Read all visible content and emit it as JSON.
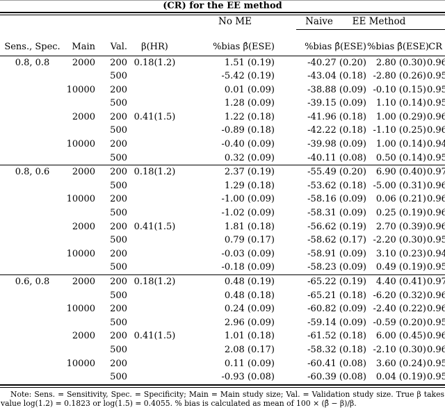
{
  "caption": "(CR) for the EE method",
  "table": {
    "groups": {
      "no_me": "No ME",
      "naive": "Naive",
      "ee_method": "EE Method"
    },
    "columns": [
      "Sens., Spec.",
      "Main",
      "Val.",
      "β(HR)",
      "%bias β̂(ESE)",
      "%bias β̂(ESE)",
      "%bias β̂(ESE)",
      "CR"
    ],
    "sections": [
      {
        "label": "0.8, 0.8",
        "rows": [
          [
            "0.8, 0.8",
            "2000",
            "200",
            "0.18(1.2)",
            "1.51 (0.19)",
            "-40.27 (0.20)",
            "2.80 (0.30)",
            "0.96"
          ],
          [
            "",
            "",
            "500",
            "",
            "-5.42 (0.19)",
            "-43.04 (0.18)",
            "-2.80 (0.26)",
            "0.95"
          ],
          [
            "",
            "10000",
            "200",
            "",
            "0.01 (0.09)",
            "-38.88 (0.09)",
            "-0.10 (0.15)",
            "0.95"
          ],
          [
            "",
            "",
            "500",
            "",
            "1.28 (0.09)",
            "-39.15 (0.09)",
            "1.10 (0.14)",
            "0.95"
          ],
          [
            "",
            "2000",
            "200",
            "0.41(1.5)",
            "1.22 (0.18)",
            "-41.96 (0.18)",
            "1.00 (0.29)",
            "0.96"
          ],
          [
            "",
            "",
            "500",
            "",
            "-0.89 (0.18)",
            "-42.22 (0.18)",
            "-1.10 (0.25)",
            "0.96"
          ],
          [
            "",
            "10000",
            "200",
            "",
            "-0.40 (0.09)",
            "-39.98 (0.09)",
            "1.00 (0.14)",
            "0.94"
          ],
          [
            "",
            "",
            "500",
            "",
            "0.32 (0.09)",
            "-40.11 (0.08)",
            "0.50 (0.14)",
            "0.95"
          ]
        ]
      },
      {
        "label": "0.8, 0.6",
        "rows": [
          [
            "0.8, 0.6",
            "2000",
            "200",
            "0.18(1.2)",
            "2.37 (0.19)",
            "-55.49 (0.20)",
            "6.90 (0.40)",
            "0.97"
          ],
          [
            "",
            "",
            "500",
            "",
            "1.29 (0.18)",
            "-53.62 (0.18)",
            "-5.00 (0.31)",
            "0.96"
          ],
          [
            "",
            "10000",
            "200",
            "",
            "-1.00 (0.09)",
            "-58.16 (0.09)",
            "0.06 (0.21)",
            "0.96"
          ],
          [
            "",
            "",
            "500",
            "",
            "-1.02 (0.09)",
            "-58.31 (0.09)",
            "0.25 (0.19)",
            "0.96"
          ],
          [
            "",
            "2000",
            "200",
            "0.41(1.5)",
            "1.81 (0.18)",
            "-56.62 (0.19)",
            "2.70 (0.39)",
            "0.96"
          ],
          [
            "",
            "",
            "500",
            "",
            "0.79 (0.17)",
            "-58.62 (0.17)",
            "-2.20 (0.30)",
            "0.95"
          ],
          [
            "",
            "10000",
            "200",
            "",
            "-0.03 (0.09)",
            "-58.91 (0.09)",
            "3.10 (0.23)",
            "0.94"
          ],
          [
            "",
            "",
            "500",
            "",
            "-0.18 (0.09)",
            "-58.23 (0.09)",
            "0.49 (0.19)",
            "0.95"
          ]
        ]
      },
      {
        "label": "0.6, 0.8",
        "rows": [
          [
            "0.6, 0.8",
            "2000",
            "200",
            "0.18(1.2)",
            "0.48 (0.19)",
            "-65.22 (0.19)",
            "4.40 (0.41)",
            "0.97"
          ],
          [
            "",
            "",
            "500",
            "",
            "0.48 (0.18)",
            "-65.21 (0.18)",
            "-6.20 (0.32)",
            "0.96"
          ],
          [
            "",
            "10000",
            "200",
            "",
            "0.24 (0.09)",
            "-60.82 (0.09)",
            "-2.40 (0.22)",
            "0.96"
          ],
          [
            "",
            "",
            "500",
            "",
            "2.96 (0.09)",
            "-59.14 (0.09)",
            "-0.59 (0.20)",
            "0.95"
          ],
          [
            "",
            "2000",
            "200",
            "0.41(1.5)",
            "1.01 (0.18)",
            "-61.52 (0.18)",
            "6.00 (0.45)",
            "0.96"
          ],
          [
            "",
            "",
            "500",
            "",
            "2.08 (0.17)",
            "-58.32 (0.18)",
            "-2.10 (0.30)",
            "0.96"
          ],
          [
            "",
            "10000",
            "200",
            "",
            "0.11 (0.09)",
            "-60.41 (0.08)",
            "3.60 (0.24)",
            "0.95"
          ],
          [
            "",
            "",
            "500",
            "",
            "-0.93 (0.08)",
            "-60.39 (0.08)",
            "0.04 (0.19)",
            "0.95"
          ]
        ]
      }
    ]
  },
  "footnote": "Note: Sens. = Sensitivity, Spec. = Specificity; Main = Main study size; Val. = Validation study size. True β takes value log(1.2) = 0.1823 or log(1.5) = 0.4055. % bias is calculated as mean of 100 × (β̂ − β)/β.",
  "colors": {
    "text": "#000000",
    "background": "#ffffff",
    "rule": "#000000"
  }
}
